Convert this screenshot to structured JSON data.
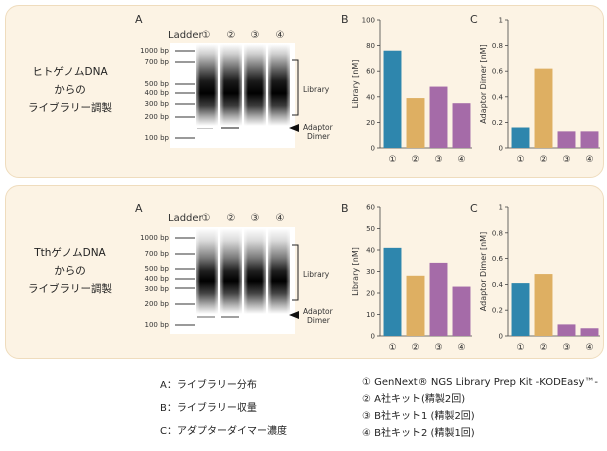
{
  "rows": [
    {
      "side_label_lines": [
        "ヒトゲノムDNA",
        "からの",
        "ライブラリー調製"
      ],
      "gel": {
        "panel_letter": "A",
        "ladder_label": "Ladder",
        "lane_labels": [
          "①",
          "②",
          "③",
          "④"
        ],
        "ladder_sizes": [
          "1000 bp",
          "700 bp",
          "500 bp",
          "400 bp",
          "300 bp",
          "200 bp",
          "100 bp"
        ],
        "annotations": [
          "Library",
          "Adaptor",
          "Dimer"
        ]
      }
    },
    {
      "side_label_lines": [
        "TthゲノムDNA",
        "からの",
        "ライブラリー調製"
      ],
      "gel": {
        "panel_letter": "A",
        "ladder_label": "Ladder",
        "lane_labels": [
          "①",
          "②",
          "③",
          "④"
        ],
        "ladder_sizes": [
          "1000 bp",
          "700 bp",
          "500 bp",
          "400 bp",
          "300 bp",
          "200 bp",
          "100 bp"
        ],
        "annotations": [
          "Library",
          "Adaptor",
          "Dimer"
        ]
      }
    }
  ],
  "chart_data": [
    {
      "type": "bar",
      "panel_letter": "B",
      "categories": [
        "①",
        "②",
        "③",
        "④"
      ],
      "values": [
        76,
        39,
        48,
        35
      ],
      "ylabel": "Library [nM]",
      "ylim": [
        0,
        100
      ],
      "yticks": [
        "0",
        "20",
        "40",
        "60",
        "80",
        "100"
      ],
      "colors": [
        "#2e86ad",
        "#deaf62",
        "#a56ba8",
        "#a56ba8"
      ]
    },
    {
      "type": "bar",
      "panel_letter": "C",
      "categories": [
        "①",
        "②",
        "③",
        "④"
      ],
      "values": [
        0.16,
        0.62,
        0.13,
        0.13
      ],
      "ylabel": "Adaptor Dimer [nM]",
      "ylim": [
        0,
        1
      ],
      "yticks": [
        "0",
        "0.2",
        "0.4",
        "0.6",
        "0.8",
        "1"
      ],
      "colors": [
        "#2e86ad",
        "#deaf62",
        "#a56ba8",
        "#a56ba8"
      ]
    },
    {
      "type": "bar",
      "panel_letter": "B",
      "categories": [
        "①",
        "②",
        "③",
        "④"
      ],
      "values": [
        41,
        28,
        34,
        23
      ],
      "ylabel": "Library [nM]",
      "ylim": [
        0,
        60
      ],
      "yticks": [
        "0",
        "10",
        "20",
        "30",
        "40",
        "50",
        "60"
      ],
      "colors": [
        "#2e86ad",
        "#deaf62",
        "#a56ba8",
        "#a56ba8"
      ]
    },
    {
      "type": "bar",
      "panel_letter": "C",
      "categories": [
        "①",
        "②",
        "③",
        "④"
      ],
      "values": [
        0.41,
        0.48,
        0.09,
        0.06
      ],
      "ylabel": "Adaptor Dimer [nM]",
      "ylim": [
        0,
        1
      ],
      "yticks": [
        "0",
        "0.2",
        "0.4",
        "0.6",
        "0.8",
        "1"
      ],
      "colors": [
        "#2e86ad",
        "#deaf62",
        "#a56ba8",
        "#a56ba8"
      ]
    }
  ],
  "legend_left": [
    "A：ライブラリー分布",
    "B：ライブラリー収量",
    "C：アダプターダイマー濃度"
  ],
  "legend_right": [
    "① GenNext® NGS Library Prep Kit -KODEasy™-",
    "② A社キット(精製2回)",
    "③ B社キット1 (精製2回)",
    "④ B社キット2 (精製1回)"
  ]
}
